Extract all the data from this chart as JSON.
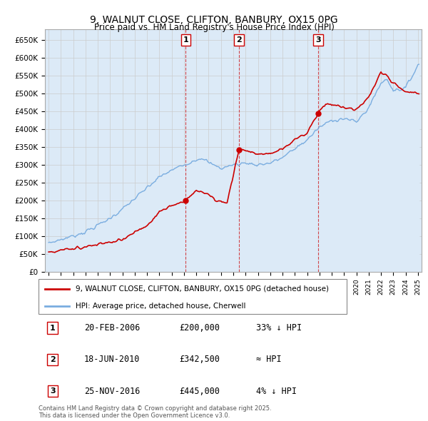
{
  "title": "9, WALNUT CLOSE, CLIFTON, BANBURY, OX15 0PG",
  "subtitle": "Price paid vs. HM Land Registry's House Price Index (HPI)",
  "ylabel_ticks": [
    "£0",
    "£50K",
    "£100K",
    "£150K",
    "£200K",
    "£250K",
    "£300K",
    "£350K",
    "£400K",
    "£450K",
    "£500K",
    "£550K",
    "£600K",
    "£650K"
  ],
  "ylim": [
    0,
    680000
  ],
  "yticks": [
    0,
    50000,
    100000,
    150000,
    200000,
    250000,
    300000,
    350000,
    400000,
    450000,
    500000,
    550000,
    600000,
    650000
  ],
  "sale_prices": [
    200000,
    342500,
    445000
  ],
  "sale_labels": [
    "1",
    "2",
    "3"
  ],
  "vertical_line_color": "#cc0000",
  "hpi_line_color": "#7aade0",
  "hpi_fill_color": "#dceaf7",
  "price_line_color": "#cc0000",
  "legend_label_red": "9, WALNUT CLOSE, CLIFTON, BANBURY, OX15 0PG (detached house)",
  "legend_label_blue": "HPI: Average price, detached house, Cherwell",
  "table_rows": [
    {
      "num": "1",
      "date": "20-FEB-2006",
      "price": "£200,000",
      "change": "33% ↓ HPI"
    },
    {
      "num": "2",
      "date": "18-JUN-2010",
      "price": "£342,500",
      "change": "≈ HPI"
    },
    {
      "num": "3",
      "date": "25-NOV-2016",
      "price": "£445,000",
      "change": "4% ↓ HPI"
    }
  ],
  "footer": "Contains HM Land Registry data © Crown copyright and database right 2025.\nThis data is licensed under the Open Government Licence v3.0.",
  "background_color": "#ffffff",
  "grid_color": "#cccccc"
}
